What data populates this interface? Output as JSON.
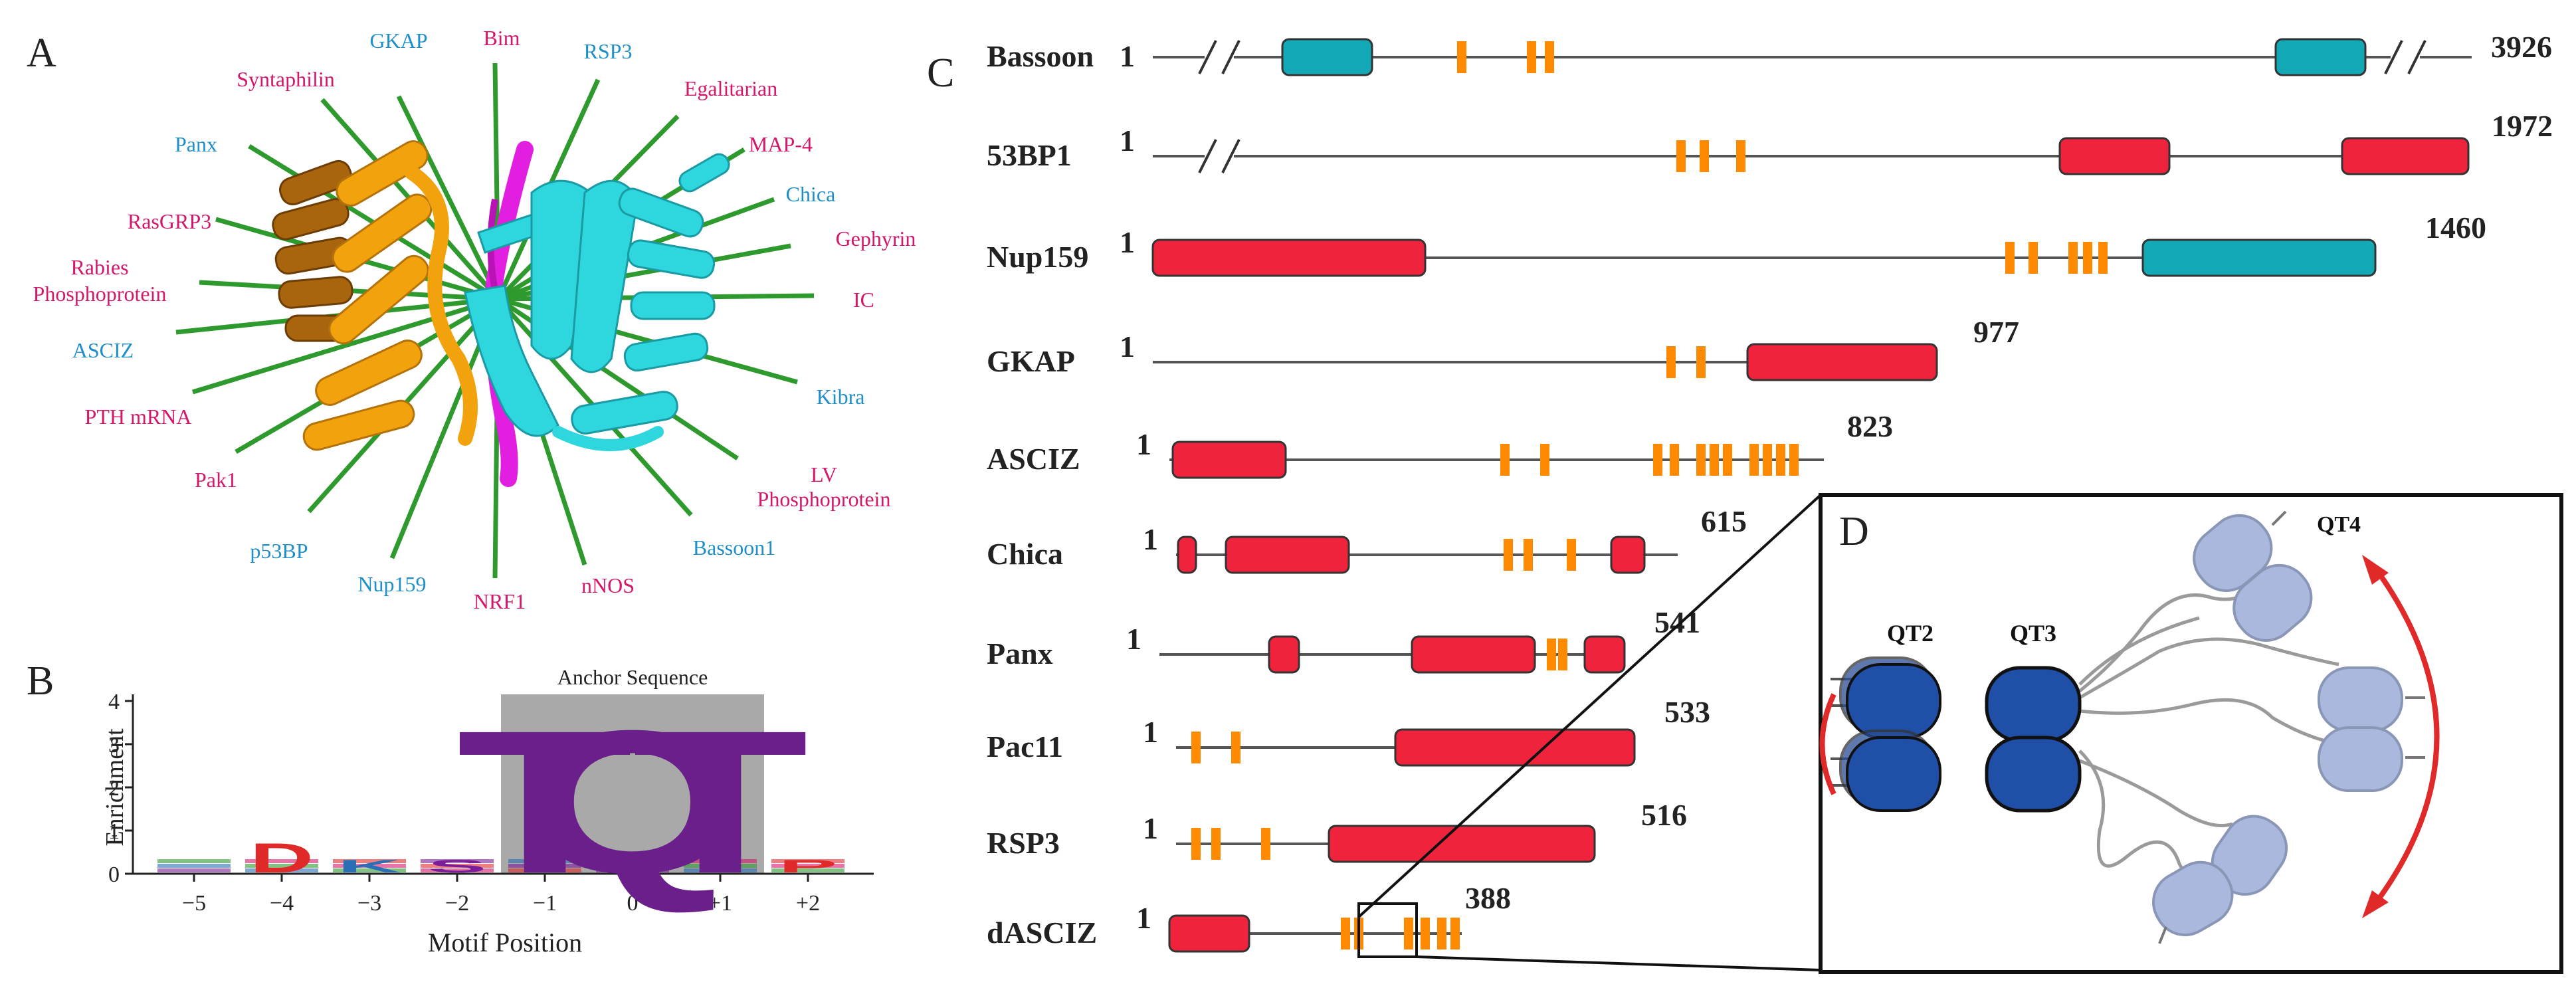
{
  "panel_labels": {
    "a": "A",
    "b": "B",
    "c": "C",
    "d": "D"
  },
  "colors": {
    "magenta_label": "#d5176a",
    "blue_label": "#1f8fc9",
    "spoke": "#2e9a2e",
    "helix_dark": "#a8650e",
    "helix_orange": "#f2a20c",
    "helix_cyan": "#2ed6de",
    "strand_magenta": "#e21ee0",
    "domain_red": "#ef233c",
    "domain_teal": "#12a8b5",
    "motif_orange": "#ff8a00",
    "qt_dark": "#1f4fa6",
    "qt_light": "#a9b8dc",
    "arrow_red": "#e02a2a"
  },
  "panel_a": {
    "partners": [
      {
        "name": "GKAP",
        "color": "blue"
      },
      {
        "name": "Bim",
        "color": "magenta"
      },
      {
        "name": "RSP3",
        "color": "blue"
      },
      {
        "name": "Syntaphilin",
        "color": "magenta"
      },
      {
        "name": "Egalitarian",
        "color": "magenta"
      },
      {
        "name": "MAP-4",
        "color": "magenta"
      },
      {
        "name": "Panx",
        "color": "blue"
      },
      {
        "name": "Chica",
        "color": "blue"
      },
      {
        "name": "RasGRP3",
        "color": "magenta"
      },
      {
        "name": "Gephyrin",
        "color": "magenta"
      },
      {
        "name": "Rabies",
        "color": "magenta"
      },
      {
        "name": "Phosphoprotein",
        "color": "magenta"
      },
      {
        "name": "IC",
        "color": "magenta"
      },
      {
        "name": "ASCIZ",
        "color": "blue"
      },
      {
        "name": "Kibra",
        "color": "blue"
      },
      {
        "name": "PTH mRNA",
        "color": "magenta"
      },
      {
        "name": "LV",
        "color": "magenta"
      },
      {
        "name": "Phosphoprotein",
        "color": "magenta"
      },
      {
        "name": "Pak1",
        "color": "magenta"
      },
      {
        "name": "p53BP",
        "color": "blue"
      },
      {
        "name": "Bassoon1",
        "color": "blue"
      },
      {
        "name": "Nup159",
        "color": "blue"
      },
      {
        "name": "NRF1",
        "color": "magenta"
      },
      {
        "name": "nNOS",
        "color": "magenta"
      }
    ]
  },
  "panel_b": {
    "title": "Anchor Sequence",
    "ylabel": "Enrichment",
    "xlabel": "Motif Position",
    "chart_data": {
      "type": "sequence-logo",
      "title": "Anchor Sequence",
      "xlabel": "Motif Position",
      "ylabel": "Enrichment",
      "ylim": [
        0,
        4
      ],
      "y_ticks": [
        "0",
        "1",
        "2",
        "3",
        "4"
      ],
      "positions": [
        "−5",
        "−4",
        "−3",
        "−2",
        "−1",
        "0",
        "+1",
        "+2"
      ],
      "letters": [
        {
          "position": "−1",
          "letter": "T",
          "height": 3.4
        },
        {
          "position": "0",
          "letter": "Q",
          "height": 3.4
        },
        {
          "position": "+1",
          "letter": "T",
          "height": 3.4
        },
        {
          "position": "−4",
          "letter": "D",
          "height": 0.7
        },
        {
          "position": "−3",
          "letter": "K",
          "height": 0.3
        },
        {
          "position": "−2",
          "letter": "S",
          "height": 0.3
        },
        {
          "position": "+2",
          "letter": "P",
          "height": 0.3
        }
      ]
    }
  },
  "panel_c": {
    "proteins": [
      {
        "name": "Bassoon",
        "start": "1",
        "end": "3926"
      },
      {
        "name": "53BP1",
        "start": "1",
        "end": "1972"
      },
      {
        "name": "Nup159",
        "start": "1",
        "end": "1460"
      },
      {
        "name": "GKAP",
        "start": "1",
        "end": "977"
      },
      {
        "name": "ASCIZ",
        "start": "1",
        "end": "823"
      },
      {
        "name": "Chica",
        "start": "1",
        "end": "615"
      },
      {
        "name": "Panx",
        "start": "1",
        "end": "541"
      },
      {
        "name": "Pac11",
        "start": "1",
        "end": "533"
      },
      {
        "name": "RSP3",
        "start": "1",
        "end": "516"
      },
      {
        "name": "dASCIZ",
        "start": "1",
        "end": "388"
      }
    ]
  },
  "panel_d": {
    "labels": [
      "QT2",
      "QT3",
      "QT4"
    ]
  }
}
